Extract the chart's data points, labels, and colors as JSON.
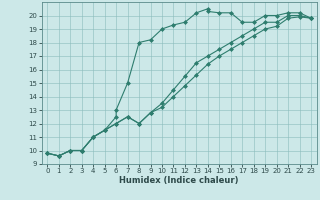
{
  "title": "",
  "xlabel": "Humidex (Indice chaleur)",
  "ylabel": "",
  "bg_color": "#cce8e8",
  "line_color": "#2e7d6e",
  "marker": "D",
  "marker_size": 2,
  "linewidth": 0.8,
  "xlim": [
    -0.5,
    23.5
  ],
  "ylim": [
    9,
    21
  ],
  "xticks": [
    0,
    1,
    2,
    3,
    4,
    5,
    6,
    7,
    8,
    9,
    10,
    11,
    12,
    13,
    14,
    15,
    16,
    17,
    18,
    19,
    20,
    21,
    22,
    23
  ],
  "yticks": [
    9,
    10,
    11,
    12,
    13,
    14,
    15,
    16,
    17,
    18,
    19,
    20
  ],
  "series": [
    {
      "x": [
        0,
        1,
        2,
        3,
        4,
        5,
        6,
        6,
        7,
        8,
        9,
        10,
        11,
        12,
        13,
        14,
        14,
        15,
        16,
        17,
        18,
        19,
        20,
        21,
        22,
        23
      ],
      "y": [
        9.8,
        9.6,
        10.0,
        10.0,
        11.0,
        11.5,
        12.5,
        13.0,
        15.0,
        18.0,
        18.2,
        19.0,
        19.3,
        19.5,
        20.2,
        20.5,
        20.3,
        20.2,
        20.2,
        19.5,
        19.5,
        20.0,
        20.0,
        20.2,
        20.2,
        19.8
      ]
    },
    {
      "x": [
        0,
        1,
        2,
        3,
        4,
        5,
        6,
        7,
        8,
        9,
        10,
        11,
        12,
        13,
        14,
        15,
        16,
        17,
        18,
        19,
        20,
        21,
        22,
        23
      ],
      "y": [
        9.8,
        9.6,
        10.0,
        10.0,
        11.0,
        11.5,
        12.0,
        12.5,
        12.0,
        12.8,
        13.5,
        14.5,
        15.5,
        16.5,
        17.0,
        17.5,
        18.0,
        18.5,
        19.0,
        19.5,
        19.5,
        20.0,
        20.0,
        19.8
      ]
    },
    {
      "x": [
        0,
        1,
        2,
        3,
        4,
        5,
        6,
        7,
        8,
        9,
        10,
        11,
        12,
        13,
        14,
        15,
        16,
        17,
        18,
        19,
        20,
        21,
        22,
        23
      ],
      "y": [
        9.8,
        9.6,
        10.0,
        10.0,
        11.0,
        11.5,
        12.0,
        12.5,
        12.0,
        12.8,
        13.2,
        14.0,
        14.8,
        15.6,
        16.4,
        17.0,
        17.5,
        18.0,
        18.5,
        19.0,
        19.2,
        19.8,
        19.9,
        19.8
      ]
    }
  ],
  "grid_color": "#8bbcbc",
  "spine_color": "#5a8a8a",
  "tick_color": "#2e4a4a",
  "xlabel_fontsize": 6,
  "tick_fontsize": 5,
  "xlabel_fontweight": "bold"
}
